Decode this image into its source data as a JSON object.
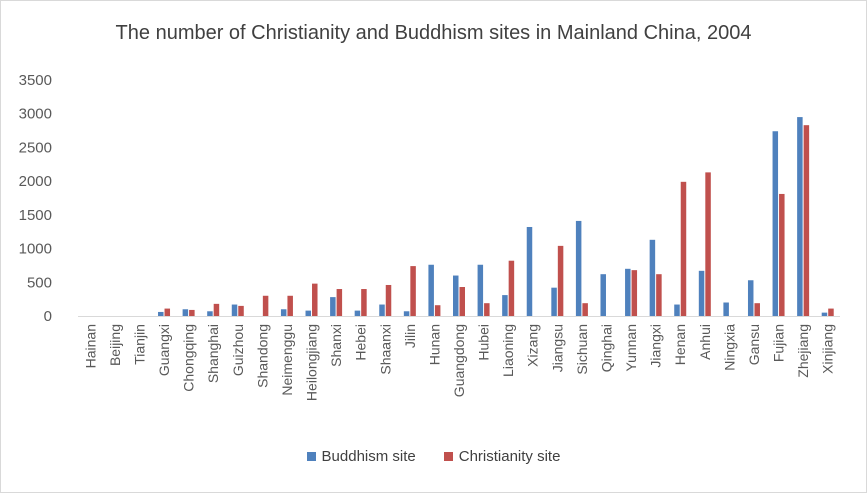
{
  "chart_data": {
    "type": "bar",
    "title": "The number of Christianity and Buddhism sites in Mainland China, 2004",
    "xlabel": "",
    "ylabel": "",
    "ylim": [
      0,
      3500
    ],
    "yticks": [
      0,
      500,
      1000,
      1500,
      2000,
      2500,
      3000,
      3500
    ],
    "grid": false,
    "legend_position": "bottom",
    "categories": [
      "Hainan",
      "Beijing",
      "Tianjin",
      "Guangxi",
      "Chongqing",
      "Shanghai",
      "Guizhou",
      "Shandong",
      "Neimenggu",
      "Heilongjiang",
      "Shanxi",
      "Hebei",
      "Shaanxi",
      "Jilin",
      "Hunan",
      "Guangdong",
      "Hubei",
      "Liaoning",
      "Xizang",
      "Jiangsu",
      "Sichuan",
      "Qinghai",
      "Yunnan",
      "Jiangxi",
      "Henan",
      "Anhui",
      "Ningxia",
      "Gansu",
      "Fujian",
      "Zhejiang",
      "Xinjiang"
    ],
    "series": [
      {
        "name": "Buddhism site",
        "color": "#4f81bd",
        "values": [
          0,
          0,
          0,
          60,
          100,
          70,
          170,
          0,
          100,
          80,
          280,
          80,
          170,
          70,
          760,
          600,
          760,
          310,
          1320,
          420,
          1410,
          620,
          700,
          1130,
          170,
          670,
          200,
          530,
          2740,
          2950,
          50
        ]
      },
      {
        "name": "Christianity site",
        "color": "#c0504d",
        "values": [
          0,
          0,
          0,
          110,
          90,
          180,
          150,
          300,
          300,
          480,
          400,
          400,
          460,
          740,
          160,
          430,
          190,
          820,
          0,
          1040,
          190,
          0,
          680,
          620,
          1990,
          2130,
          0,
          190,
          1810,
          2830,
          110
        ]
      }
    ]
  }
}
